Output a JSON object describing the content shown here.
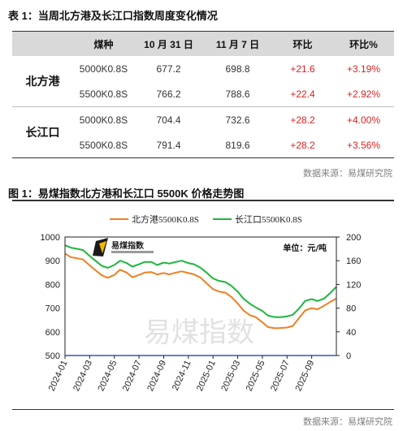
{
  "table": {
    "title": "表 1：当周北方港及长江口指数周度变化情况",
    "headers": [
      "",
      "煤种",
      "10 月 31 日",
      "11 月 7 日",
      "环比",
      "环比%"
    ],
    "groups": [
      {
        "port": "北方港",
        "rows": [
          {
            "coal": "5000K0.8S",
            "oct31": "677.2",
            "nov7": "698.8",
            "chg": "+21.6",
            "pct": "+3.19%"
          },
          {
            "coal": "5500K0.8S",
            "oct31": "766.2",
            "nov7": "788.6",
            "chg": "+22.4",
            "pct": "+2.92%"
          }
        ]
      },
      {
        "port": "长江口",
        "rows": [
          {
            "coal": "5000K0.8S",
            "oct31": "704.4",
            "nov7": "732.6",
            "chg": "+28.2",
            "pct": "+4.00%"
          },
          {
            "coal": "5500K0.8S",
            "oct31": "791.4",
            "nov7": "819.6",
            "chg": "+28.2",
            "pct": "+3.56%"
          }
        ]
      }
    ],
    "source": "数据来源：易煤研究院"
  },
  "figure": {
    "title": "图 1：易煤指数北方港和长江口 5500K 价格走势图",
    "source": "数据来源：易煤研究院",
    "logo_text": "易煤指数",
    "watermark": "易煤指数"
  },
  "colors": {
    "north": "#f07f21",
    "yangtze": "#1db63c",
    "up": "#e02020",
    "header_bg": "#d9d9d9"
  },
  "chart_data": {
    "type": "line",
    "left_axis": {
      "min": 500,
      "max": 1000,
      "ticks": [
        "500",
        "600",
        "700",
        "800",
        "900",
        "1000"
      ]
    },
    "right_axis": {
      "min": 0,
      "max": 200,
      "ticks": [
        "0",
        "40",
        "80",
        "120",
        "160",
        "200"
      ],
      "label": "单位：元/吨"
    },
    "x_ticks": [
      "2024-01",
      "2024-03",
      "2024-05",
      "2024-07",
      "2024-09",
      "2024-11",
      "2025-01",
      "2025-03",
      "2025-05",
      "2025-07",
      "2025-09"
    ],
    "x_range": [
      "2024-01",
      "2025-11"
    ],
    "legend": {
      "placement": "top-center"
    },
    "grid": false,
    "series": [
      {
        "name": "北方港5500K0.8S",
        "color": "#f07f21",
        "x": [
          "2024-01",
          "2024-01-15",
          "2024-02",
          "2024-02-15",
          "2024-03",
          "2024-03-15",
          "2024-04",
          "2024-04-15",
          "2024-05",
          "2024-05-15",
          "2024-06",
          "2024-06-15",
          "2024-07",
          "2024-07-15",
          "2024-08",
          "2024-08-15",
          "2024-09",
          "2024-09-15",
          "2024-10",
          "2024-10-15",
          "2024-11",
          "2024-11-15",
          "2024-12",
          "2024-12-15",
          "2025-01",
          "2025-01-15",
          "2025-02",
          "2025-02-15",
          "2025-03",
          "2025-03-15",
          "2025-04",
          "2025-04-15",
          "2025-05",
          "2025-05-15",
          "2025-06",
          "2025-06-15",
          "2025-07",
          "2025-07-15",
          "2025-08",
          "2025-08-15",
          "2025-09",
          "2025-09-15",
          "2025-10",
          "2025-10-15",
          "2025-11"
        ],
        "values": [
          930,
          915,
          910,
          905,
          880,
          860,
          838,
          828,
          840,
          862,
          850,
          830,
          840,
          850,
          852,
          842,
          848,
          842,
          850,
          855,
          848,
          842,
          828,
          805,
          780,
          770,
          765,
          748,
          720,
          690,
          670,
          662,
          640,
          620,
          615,
          616,
          618,
          625,
          660,
          690,
          700,
          695,
          710,
          725,
          740
        ]
      },
      {
        "name": "长江口5500K0.8S",
        "color": "#1db63c",
        "x": [
          "2024-01",
          "2024-01-15",
          "2024-02",
          "2024-02-15",
          "2024-03",
          "2024-03-15",
          "2024-04",
          "2024-04-15",
          "2024-05",
          "2024-05-15",
          "2024-06",
          "2024-06-15",
          "2024-07",
          "2024-07-15",
          "2024-08",
          "2024-08-15",
          "2024-09",
          "2024-09-15",
          "2024-10",
          "2024-10-15",
          "2024-11",
          "2024-11-15",
          "2024-12",
          "2024-12-15",
          "2025-01",
          "2025-01-15",
          "2025-02",
          "2025-02-15",
          "2025-03",
          "2025-03-15",
          "2025-04",
          "2025-04-15",
          "2025-05",
          "2025-05-15",
          "2025-06",
          "2025-06-15",
          "2025-07",
          "2025-07-15",
          "2025-08",
          "2025-08-15",
          "2025-09",
          "2025-09-15",
          "2025-10",
          "2025-10-15",
          "2025-11"
        ],
        "values": [
          965,
          955,
          950,
          945,
          920,
          900,
          878,
          870,
          882,
          900,
          890,
          875,
          885,
          895,
          895,
          882,
          892,
          888,
          895,
          900,
          890,
          885,
          870,
          850,
          825,
          815,
          810,
          795,
          770,
          740,
          718,
          703,
          688,
          668,
          662,
          662,
          665,
          672,
          700,
          730,
          738,
          730,
          740,
          762,
          790
        ]
      }
    ]
  }
}
